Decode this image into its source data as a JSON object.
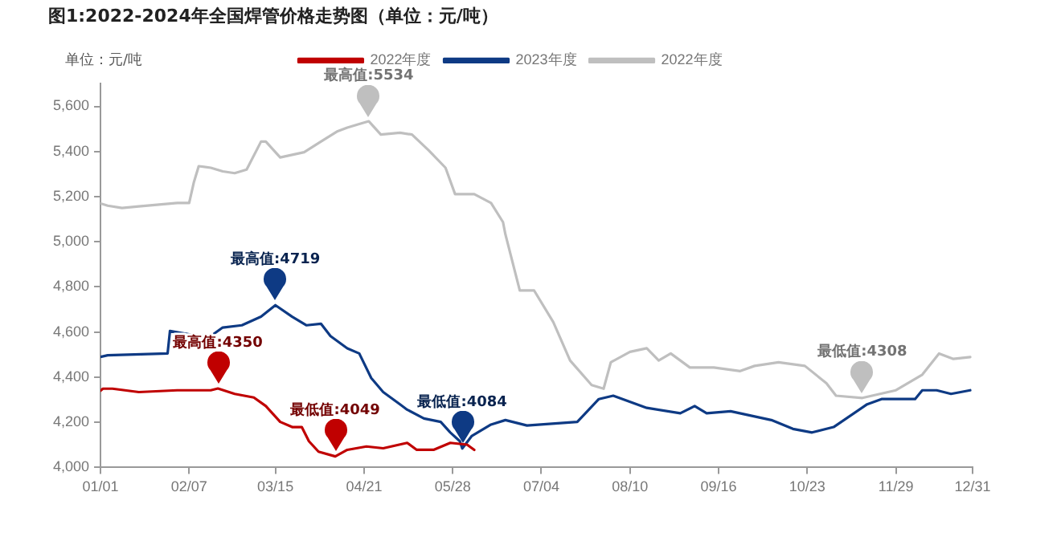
{
  "chart_data": {
    "type": "line",
    "title": "图1:2022-2024年全国焊管价格走势图（单位：元/吨）",
    "ylabel": "单位：元/吨",
    "xlim": [
      "--01-01",
      "--12-31"
    ],
    "xticks": [
      {
        "value": "--01-01",
        "label": "01/01"
      },
      {
        "value": "--02-07",
        "label": "02/07"
      },
      {
        "value": "--03-15",
        "label": "03/15"
      },
      {
        "value": "--04-21",
        "label": "04/21"
      },
      {
        "value": "--05-28",
        "label": "05/28"
      },
      {
        "value": "--07-04",
        "label": "07/04"
      },
      {
        "value": "--08-10",
        "label": "08/10"
      },
      {
        "value": "--09-16",
        "label": "09/16"
      },
      {
        "value": "--10-23",
        "label": "10/23"
      },
      {
        "value": "--11-29",
        "label": "11/29"
      },
      {
        "value": "--12-31",
        "label": "12/31"
      }
    ],
    "ylim": [
      4000,
      5700
    ],
    "yticks": [
      {
        "value": 4000,
        "label": "4,000"
      },
      {
        "value": 4200,
        "label": "4,200"
      },
      {
        "value": 4400,
        "label": "4,400"
      },
      {
        "value": 4600,
        "label": "4,600"
      },
      {
        "value": 4800,
        "label": "4,800"
      },
      {
        "value": 5000,
        "label": "5,000"
      },
      {
        "value": 5200,
        "label": "5,200"
      },
      {
        "value": 5400,
        "label": "5,400"
      },
      {
        "value": 5600,
        "label": "5,600"
      }
    ],
    "grid": false,
    "legend": "top",
    "marker": "none",
    "line_style": "solid",
    "series": [
      {
        "name": "2022年度",
        "color": "#c00000",
        "x": [
          "--01-01",
          "--01-02",
          "--01-06",
          "--01-17",
          "--02-02",
          "--02-16",
          "--02-19",
          "--02-26",
          "--03-06",
          "--03-11",
          "--03-17",
          "--03-22",
          "--03-26",
          "--03-29",
          "--04-02",
          "--04-09",
          "--04-14",
          "--04-22",
          "--04-29",
          "--05-09",
          "--05-13",
          "--05-20",
          "--05-27",
          "--06-03",
          "--06-06"
        ],
        "values": [
          4340,
          4349,
          4349,
          4334,
          4342,
          4342,
          4350,
          4326,
          4310,
          4272,
          4202,
          4179,
          4179,
          4116,
          4070,
          4049,
          4078,
          4093,
          4085,
          4109,
          4078,
          4078,
          4109,
          4101,
          4078
        ]
      },
      {
        "name": "2023年度",
        "color": "#0e3a84",
        "x": [
          "--01-01",
          "--01-04",
          "--01-29",
          "--01-30",
          "--02-07",
          "--02-16",
          "--02-21",
          "--03-01",
          "--03-09",
          "--03-15",
          "--03-22",
          "--03-28",
          "--04-03",
          "--04-07",
          "--04-14",
          "--04-19",
          "--04-24",
          "--04-29",
          "--05-06",
          "--05-09",
          "--05-16",
          "--05-23",
          "--05-27",
          "--05-31",
          "--06-01",
          "--06-05",
          "--06-13",
          "--06-19",
          "--06-28",
          "--07-19",
          "--07-28",
          "--08-03",
          "--08-17",
          "--08-31",
          "--09-06",
          "--09-11",
          "--09-21",
          "--10-08",
          "--10-17",
          "--10-25",
          "--11-03",
          "--11-17",
          "--11-23",
          "--12-07",
          "--12-10",
          "--12-16",
          "--12-22",
          "--12-30"
        ],
        "values": [
          4490,
          4497,
          4505,
          4605,
          4590,
          4582,
          4620,
          4630,
          4668,
          4719,
          4668,
          4630,
          4637,
          4582,
          4528,
          4505,
          4396,
          4334,
          4280,
          4256,
          4217,
          4202,
          4155,
          4116,
          4084,
          4140,
          4190,
          4210,
          4186,
          4202,
          4303,
          4318,
          4264,
          4240,
          4272,
          4240,
          4249,
          4210,
          4171,
          4155,
          4179,
          4280,
          4303,
          4303,
          4342,
          4342,
          4326,
          4342
        ]
      },
      {
        "name": "2022年度",
        "color": "#bfbfbf",
        "x": [
          "--01-01",
          "--01-04",
          "--01-10",
          "--01-17",
          "--02-02",
          "--02-07",
          "--02-09",
          "--02-11",
          "--02-16",
          "--02-21",
          "--02-26",
          "--03-03",
          "--03-09",
          "--03-11",
          "--03-17",
          "--03-27",
          "--04-03",
          "--04-10",
          "--04-14",
          "--04-19",
          "--04-23",
          "--04-28",
          "--05-06",
          "--05-11",
          "--05-18",
          "--05-25",
          "--05-29",
          "--06-06",
          "--06-13",
          "--06-18",
          "--06-19",
          "--06-25",
          "--07-01",
          "--07-09",
          "--07-16",
          "--07-25",
          "--07-30",
          "--08-02",
          "--08-10",
          "--08-17",
          "--08-22",
          "--08-27",
          "--09-04",
          "--09-14",
          "--09-25",
          "--10-01",
          "--10-11",
          "--10-22",
          "--10-31",
          "--11-04",
          "--11-15",
          "--11-29",
          "--12-10",
          "--12-17",
          "--12-23",
          "--12-30"
        ],
        "values": [
          5170,
          5160,
          5150,
          5157,
          5172,
          5172,
          5265,
          5335,
          5328,
          5312,
          5304,
          5320,
          5444,
          5444,
          5374,
          5397,
          5444,
          5490,
          5506,
          5522,
          5534,
          5475,
          5483,
          5475,
          5405,
          5328,
          5211,
          5211,
          5172,
          5087,
          5033,
          4784,
          4784,
          4644,
          4474,
          4365,
          4349,
          4466,
          4512,
          4528,
          4474,
          4505,
          4443,
          4443,
          4427,
          4450,
          4466,
          4450,
          4373,
          4318,
          4308,
          4342,
          4411,
          4505,
          4481,
          4489
        ]
      }
    ],
    "annotations": [
      {
        "text": "最高值:5534",
        "x": "--04-23",
        "y": 5534
      },
      {
        "text": "最高值:4719",
        "x": "--03-15",
        "y": 4719
      },
      {
        "text": "最高值:4350",
        "x": "--02-19",
        "y": 4350
      },
      {
        "text": "最低值:4049",
        "x": "--04-09",
        "y": 4049
      },
      {
        "text": "最低值:4084",
        "x": "--06-01",
        "y": 4084
      },
      {
        "text": "最低值:4308",
        "x": "--11-15",
        "y": 4308
      }
    ]
  }
}
